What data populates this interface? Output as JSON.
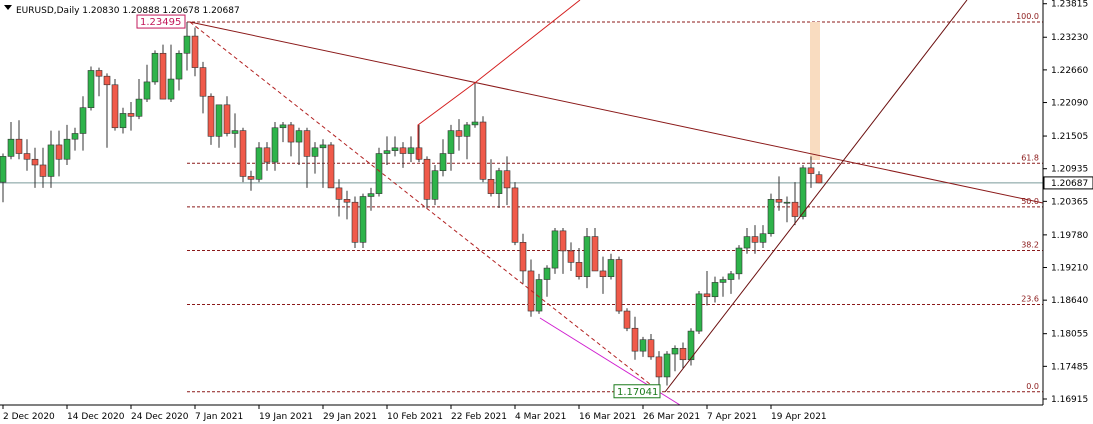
{
  "chart_data": {
    "type": "candlestick",
    "title": "EURUSD,Daily  1.20830 1.20888 1.20678 1.20687",
    "categories": [
      "2 Dec 2020",
      null,
      null,
      null,
      null,
      null,
      null,
      null,
      "14 Dec 2020",
      null,
      null,
      null,
      null,
      null,
      null,
      null,
      "24 Dec 2020",
      null,
      null,
      null,
      null,
      null,
      null,
      null,
      "7 Jan 2021",
      null,
      null,
      null,
      null,
      null,
      null,
      null,
      "19 Jan 2021",
      null,
      null,
      null,
      null,
      null,
      null,
      null,
      "29 Jan 2021",
      null,
      null,
      null,
      null,
      null,
      null,
      null,
      "10 Feb 2021",
      null,
      null,
      null,
      null,
      null,
      null,
      null,
      "22 Feb 2021",
      null,
      null,
      null,
      null,
      null,
      null,
      null,
      "4 Mar 2021",
      null,
      null,
      null,
      null,
      null,
      null,
      null,
      "16 Mar 2021",
      null,
      null,
      null,
      null,
      null,
      null,
      null,
      "26 Mar 2021",
      null,
      null,
      null,
      null,
      null,
      null,
      null,
      "7 Apr 2021",
      null,
      null,
      null,
      null,
      null,
      null,
      null,
      "19 Apr 2021",
      null,
      null,
      null,
      null,
      null,
      null
    ],
    "open": [
      1.207,
      1.2115,
      1.2145,
      1.212,
      1.211,
      1.21,
      1.208,
      1.2135,
      1.211,
      1.2145,
      1.2155,
      1.22,
      1.2265,
      1.2255,
      1.224,
      1.2165,
      1.219,
      1.2185,
      1.2215,
      1.2245,
      1.2295,
      1.2215,
      1.225,
      1.2295,
      1.2325,
      1.227,
      1.222,
      1.215,
      1.2205,
      1.2155,
      1.216,
      1.208,
      1.2075,
      1.213,
      1.2105,
      1.2165,
      1.217,
      1.214,
      1.216,
      1.2115,
      1.213,
      1.2135,
      1.206,
      1.204,
      1.2035,
      1.1965,
      1.2045,
      1.205,
      1.212,
      1.2125,
      1.213,
      1.212,
      1.213,
      1.211,
      1.204,
      1.209,
      1.212,
      1.216,
      1.215,
      1.217,
      1.2175,
      1.2075,
      1.205,
      1.209,
      1.206,
      1.1965,
      1.1915,
      1.1845,
      1.19,
      1.192,
      1.1985,
      1.195,
      1.193,
      1.1905,
      1.1975,
      1.1915,
      1.1905,
      1.1935,
      1.1845,
      1.1815,
      1.1775,
      1.1795,
      1.1765,
      1.173,
      1.177,
      1.178,
      1.176,
      1.181,
      1.1875,
      1.187,
      1.1895,
      1.19,
      1.191,
      1.1955,
      1.1975,
      1.1965,
      1.198,
      1.204,
      1.2035,
      1.2035,
      1.201,
      1.2095,
      1.2083
    ],
    "high": [
      1.212,
      1.2175,
      1.2178,
      1.2145,
      1.213,
      1.213,
      1.216,
      1.216,
      1.217,
      1.2165,
      1.222,
      1.2272,
      1.227,
      1.226,
      1.225,
      1.22,
      1.221,
      1.225,
      1.2275,
      1.23,
      1.231,
      1.231,
      1.23,
      1.23495,
      1.234,
      1.228,
      1.2225,
      1.2205,
      1.222,
      1.219,
      1.2165,
      1.209,
      1.214,
      1.214,
      1.2175,
      1.2175,
      1.2175,
      1.2165,
      1.2165,
      1.214,
      1.2145,
      1.214,
      1.2075,
      1.2055,
      1.2045,
      1.205,
      1.206,
      1.213,
      1.215,
      1.215,
      1.214,
      1.215,
      1.217,
      1.2115,
      1.21,
      1.2145,
      1.217,
      1.218,
      1.2175,
      1.2243,
      1.2185,
      1.211,
      1.2095,
      1.2115,
      1.207,
      1.198,
      1.1935,
      1.191,
      1.1925,
      1.199,
      1.199,
      1.1965,
      1.1955,
      1.199,
      1.199,
      1.194,
      1.1945,
      1.194,
      1.185,
      1.1835,
      1.18,
      1.1805,
      1.1775,
      1.1775,
      1.1785,
      1.179,
      1.1815,
      1.188,
      1.1915,
      1.1905,
      1.1905,
      1.1915,
      1.196,
      1.199,
      1.1995,
      1.1995,
      1.205,
      1.208,
      1.2045,
      1.207,
      1.21,
      1.2115,
      1.2089
    ],
    "low": [
      1.2035,
      1.211,
      1.211,
      1.209,
      1.206,
      1.206,
      1.206,
      1.208,
      1.21,
      1.2125,
      1.2125,
      1.2195,
      1.222,
      1.213,
      1.216,
      1.2155,
      1.216,
      1.218,
      1.221,
      1.224,
      1.2215,
      1.221,
      1.223,
      1.2265,
      1.2255,
      1.219,
      1.2135,
      1.213,
      1.215,
      1.213,
      1.207,
      1.2055,
      1.207,
      1.209,
      1.209,
      1.214,
      1.2115,
      1.21,
      1.206,
      1.2085,
      1.206,
      1.206,
      1.201,
      1.2005,
      1.1955,
      1.1955,
      1.202,
      1.2045,
      1.21,
      1.2115,
      1.2095,
      1.2105,
      1.2105,
      1.2025,
      1.203,
      1.208,
      1.209,
      1.2125,
      1.211,
      1.2165,
      1.207,
      1.2045,
      1.2025,
      1.203,
      1.196,
      1.1893,
      1.1835,
      1.184,
      1.187,
      1.191,
      1.191,
      1.1915,
      1.19,
      1.1885,
      1.1915,
      1.1875,
      1.19,
      1.184,
      1.181,
      1.176,
      1.1765,
      1.176,
      1.17041,
      1.1715,
      1.174,
      1.1745,
      1.175,
      1.1805,
      1.1855,
      1.186,
      1.187,
      1.1875,
      1.19,
      1.1945,
      1.1945,
      1.1955,
      1.1975,
      1.202,
      1.2,
      1.1995,
      1.2005,
      1.206,
      1.2068
    ],
    "close": [
      1.2115,
      1.2145,
      1.212,
      1.211,
      1.21,
      1.208,
      1.2135,
      1.211,
      1.2145,
      1.2155,
      1.22,
      1.2265,
      1.2255,
      1.224,
      1.2165,
      1.219,
      1.2185,
      1.2215,
      1.2245,
      1.2295,
      1.2215,
      1.225,
      1.2295,
      1.2325,
      1.227,
      1.222,
      1.215,
      1.2205,
      1.2155,
      1.216,
      1.208,
      1.2075,
      1.213,
      1.2105,
      1.2165,
      1.217,
      1.214,
      1.216,
      1.2115,
      1.213,
      1.2135,
      1.206,
      1.204,
      1.2035,
      1.1965,
      1.2045,
      1.205,
      1.212,
      1.2125,
      1.213,
      1.212,
      1.213,
      1.211,
      1.204,
      1.209,
      1.212,
      1.216,
      1.215,
      1.217,
      1.2175,
      1.2075,
      1.205,
      1.209,
      1.206,
      1.1965,
      1.1915,
      1.1845,
      1.19,
      1.192,
      1.1985,
      1.195,
      1.193,
      1.1905,
      1.1975,
      1.1915,
      1.1905,
      1.1935,
      1.1845,
      1.1815,
      1.1775,
      1.1795,
      1.1765,
      1.173,
      1.177,
      1.178,
      1.176,
      1.181,
      1.1875,
      1.187,
      1.1895,
      1.19,
      1.191,
      1.1955,
      1.1975,
      1.1965,
      1.198,
      1.204,
      1.2035,
      1.2035,
      1.201,
      1.2095,
      1.2085,
      1.20687
    ],
    "colors": {
      "up": "#2eb34a",
      "down": "#f05a4a"
    },
    "ylim": [
      1.1681,
      1.2388
    ],
    "yticks": [
      1.23815,
      {
        "value": 1.2323,
        "label": "1.23230"
      },
      {
        "value": 1.2266,
        "label": "1.22660"
      },
      {
        "value": 1.2209,
        "label": "1.22090"
      },
      1.21505,
      1.20935,
      1.20365,
      {
        "value": 1.1978,
        "label": "1.19780"
      },
      {
        "value": 1.1921,
        "label": "1.19210"
      },
      {
        "value": 1.1864,
        "label": "1.18640"
      },
      1.18055,
      1.17485,
      1.16915
    ],
    "current_price": 1.20687,
    "fibonacci": {
      "high": 1.23495,
      "low": 1.17041,
      "levels": [
        {
          "value": 0,
          "label": "0.0"
        },
        23.6,
        38.2,
        {
          "value": 50,
          "label": "50.0"
        },
        61.8,
        {
          "value": 100,
          "label": "100.0"
        }
      ]
    }
  }
}
